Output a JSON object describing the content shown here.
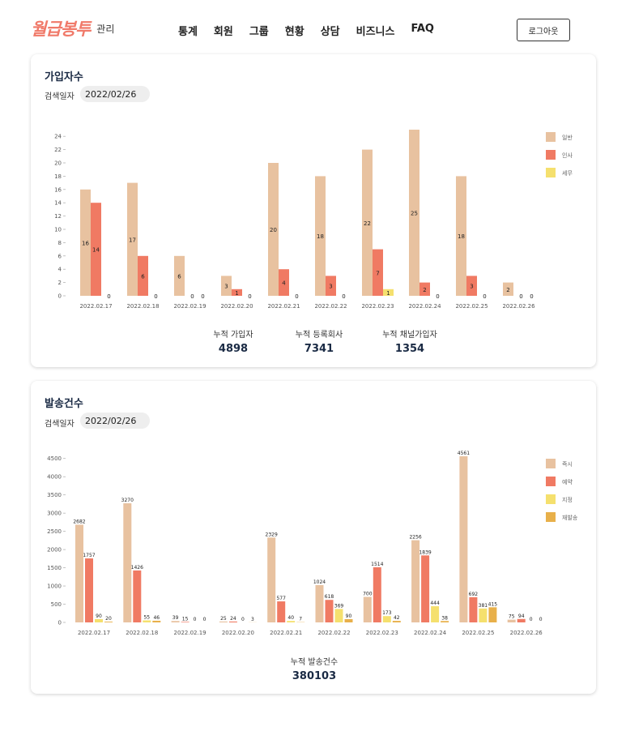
{
  "header": {
    "logo_text": "월급봉투",
    "logo_sub": "관리",
    "nav": [
      "통계",
      "회원",
      "그룹",
      "현황",
      "상담",
      "비즈니스",
      "FAQ"
    ],
    "logout_label": "로그아웃"
  },
  "signup": {
    "title": "가입자수",
    "search_label": "검색일자",
    "search_value": "2022/02/26",
    "stats": [
      {
        "label": "누적 가입자",
        "value": "4898"
      },
      {
        "label": "누적 등록회사",
        "value": "7341"
      },
      {
        "label": "누적 채널가입자",
        "value": "1354"
      }
    ]
  },
  "sending": {
    "title": "발송건수",
    "search_label": "검색일자",
    "search_value": "2022/02/26",
    "stats": [
      {
        "label": "누적 발송건수",
        "value": "380103"
      }
    ]
  },
  "chart_data": [
    {
      "type": "bar",
      "categories": [
        "2022.02.17",
        "2022.02.18",
        "2022.02.19",
        "2022.02.20",
        "2022.02.21",
        "2022.02.22",
        "2022.02.23",
        "2022.02.24",
        "2022.02.25",
        "2022.02.26"
      ],
      "series": [
        {
          "name": "일반",
          "color": "#e8c2a0",
          "values": [
            16,
            17,
            6,
            3,
            20,
            18,
            22,
            25,
            18,
            2
          ]
        },
        {
          "name": "인사",
          "color": "#f07a63",
          "values": [
            14,
            6,
            0,
            1,
            4,
            3,
            7,
            2,
            3,
            0
          ]
        },
        {
          "name": "세무",
          "color": "#f5e06e",
          "values": [
            0,
            0,
            0,
            0,
            0,
            0,
            1,
            0,
            0,
            0
          ]
        }
      ],
      "yticks": [
        0,
        2,
        4,
        6,
        8,
        10,
        12,
        14,
        16,
        18,
        20,
        22,
        24
      ],
      "ylim": [
        0,
        25
      ],
      "legend": "right"
    },
    {
      "type": "bar",
      "categories": [
        "2022.02.17",
        "2022.02.18",
        "2022.02.19",
        "2022.02.20",
        "2022.02.21",
        "2022.02.22",
        "2022.02.23",
        "2022.02.24",
        "2022.02.25",
        "2022.02.26"
      ],
      "series": [
        {
          "name": "즉시",
          "color": "#e8c2a0",
          "values": [
            2682,
            3270,
            39,
            25,
            2329,
            1024,
            700,
            2256,
            4561,
            75
          ]
        },
        {
          "name": "예약",
          "color": "#f07a63",
          "values": [
            1757,
            1426,
            15,
            24,
            577,
            618,
            1514,
            1839,
            692,
            94
          ]
        },
        {
          "name": "지정",
          "color": "#f5e06e",
          "values": [
            90,
            55,
            0,
            0,
            40,
            369,
            173,
            444,
            381,
            0
          ]
        },
        {
          "name": "재발송",
          "color": "#e8b04a",
          "values": [
            20,
            46,
            0,
            3,
            7,
            90,
            42,
            38,
            415,
            0
          ]
        }
      ],
      "yticks": [
        0,
        500,
        1000,
        1500,
        2000,
        2500,
        3000,
        3500,
        4000,
        4500
      ],
      "ylim": [
        0,
        4561
      ],
      "legend": "right"
    }
  ]
}
